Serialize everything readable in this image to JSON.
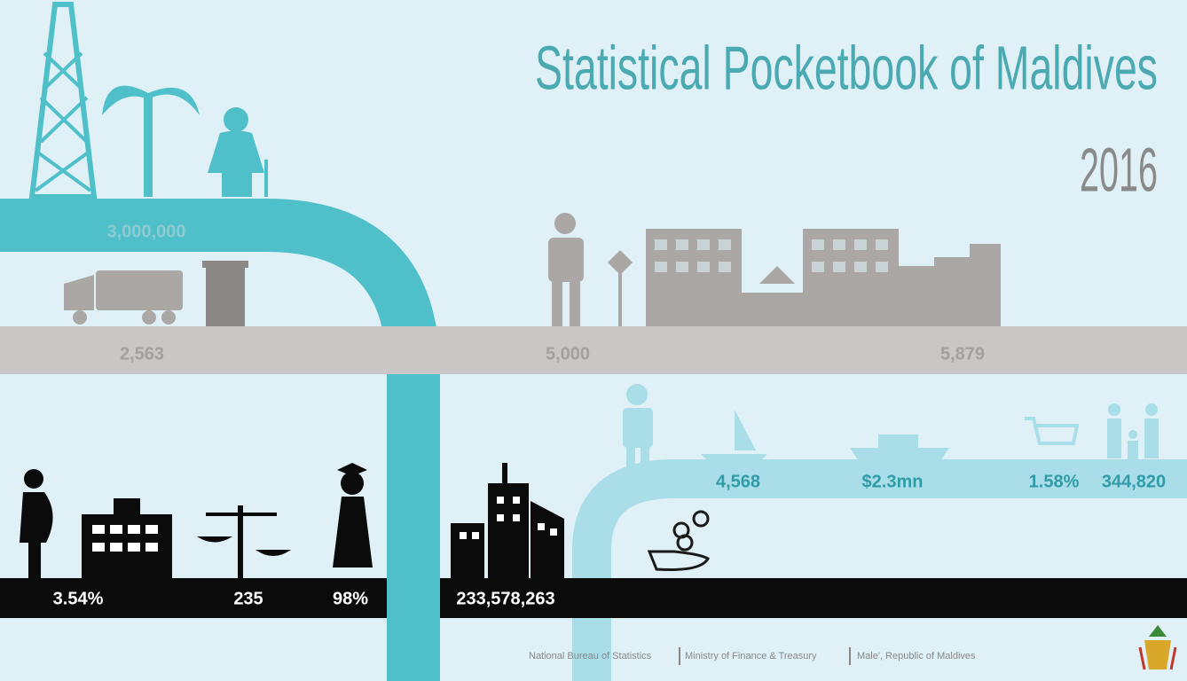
{
  "header": {
    "title": "Statistical Pocketbook of Maldives",
    "year": "2016"
  },
  "bands": {
    "teal": {
      "labels": [
        "3,000,000"
      ]
    },
    "gray": {
      "labels": [
        "2,563",
        "5,000",
        "5,879"
      ]
    },
    "light": {
      "labels": [
        "4,568",
        "$2.3mn",
        "1.58%",
        "344,820"
      ]
    },
    "black": {
      "labels": [
        "3.54%",
        "235",
        "98%",
        "233,578,263"
      ]
    }
  },
  "footer": {
    "items": [
      "National Bureau of Statistics",
      "Ministry of Finance & Treasury",
      "Male', Republic of Maldives"
    ]
  }
}
